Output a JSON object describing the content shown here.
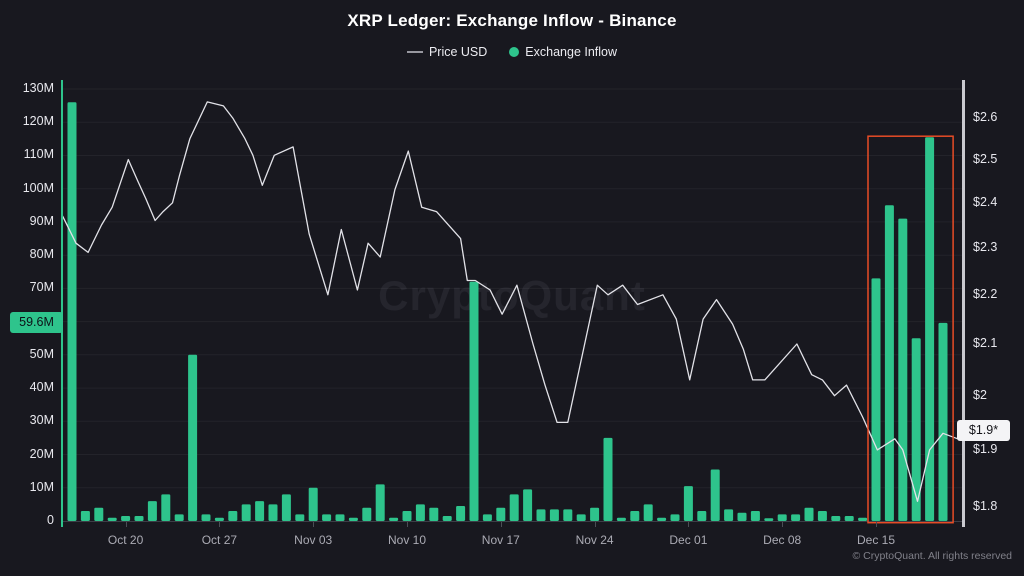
{
  "title": "XRP Ledger: Exchange Inflow - Binance",
  "legend": {
    "price_label": "Price USD",
    "inflow_label": "Exchange Inflow"
  },
  "watermark": "CryptoQuant",
  "footer": "© CryptoQuant. All rights reserved",
  "annotations": {
    "inflow_badge": {
      "label": "59.6M",
      "value": 59.6
    },
    "price_badge": {
      "label": "$1.9*",
      "value": 1.935
    }
  },
  "colors": {
    "green": "#2EC48C",
    "price_line": "#E2E2E8",
    "highlight_red": "#E74C26",
    "grid": "rgba(255,255,255,0.05)",
    "baseline": "rgba(170,175,190,0.25)"
  },
  "chart_data": {
    "type": "bar+line",
    "title": "XRP Ledger: Exchange Inflow - Binance",
    "legend_position": "top-center",
    "grid": "horizontal-faint",
    "y_left": {
      "unit": "XRP inflow (millions)",
      "range": [
        0,
        130
      ],
      "grid_values": [
        10,
        20,
        30,
        40,
        50,
        60,
        70,
        80,
        90,
        100,
        110,
        120,
        130
      ],
      "ticks": [
        {
          "value": 130,
          "label": "130M"
        },
        {
          "value": 120,
          "label": "120M"
        },
        {
          "value": 110,
          "label": "110M"
        },
        {
          "value": 100,
          "label": "100M"
        },
        {
          "value": 90,
          "label": "90M"
        },
        {
          "value": 80,
          "label": "80M"
        },
        {
          "value": 70,
          "label": "70M"
        },
        {
          "value": 50,
          "label": "50M"
        },
        {
          "value": 40,
          "label": "40M"
        },
        {
          "value": 30,
          "label": "30M"
        },
        {
          "value": 20,
          "label": "20M"
        },
        {
          "value": 10,
          "label": "10M"
        },
        {
          "value": 0,
          "label": "0"
        }
      ]
    },
    "y_right": {
      "unit": "Price USD",
      "scale": "log",
      "range": [
        1.78,
        2.66
      ],
      "ticks": [
        {
          "value": 2.6,
          "label": "$2.6"
        },
        {
          "value": 2.5,
          "label": "$2.5"
        },
        {
          "value": 2.4,
          "label": "$2.4"
        },
        {
          "value": 2.3,
          "label": "$2.3"
        },
        {
          "value": 2.2,
          "label": "$2.2"
        },
        {
          "value": 2.1,
          "label": "$2.1"
        },
        {
          "value": 2.0,
          "label": "$2"
        },
        {
          "value": 1.9,
          "label": "$1.9"
        },
        {
          "value": 1.8,
          "label": "$1.8"
        }
      ]
    },
    "x_axis": {
      "ticks": [
        {
          "day": 4,
          "label": "Oct 20"
        },
        {
          "day": 11,
          "label": "Oct 27"
        },
        {
          "day": 18,
          "label": "Nov 03"
        },
        {
          "day": 25,
          "label": "Nov 10"
        },
        {
          "day": 32,
          "label": "Nov 17"
        },
        {
          "day": 39,
          "label": "Nov 24"
        },
        {
          "day": 46,
          "label": "Dec 01"
        },
        {
          "day": 53,
          "label": "Dec 08"
        },
        {
          "day": 60,
          "label": "Dec 15"
        }
      ]
    },
    "series": {
      "inflow": {
        "name": "Exchange Inflow",
        "type": "bar",
        "unit": "M XRP",
        "dates": [
          "Oct 16",
          "Oct 17",
          "Oct 18",
          "Oct 19",
          "Oct 20",
          "Oct 21",
          "Oct 22",
          "Oct 23",
          "Oct 24",
          "Oct 25",
          "Oct 26",
          "Oct 27",
          "Oct 28",
          "Oct 29",
          "Oct 30",
          "Oct 31",
          "Nov 01",
          "Nov 02",
          "Nov 03",
          "Nov 04",
          "Nov 05",
          "Nov 06",
          "Nov 07",
          "Nov 08",
          "Nov 09",
          "Nov 10",
          "Nov 11",
          "Nov 12",
          "Nov 13",
          "Nov 14",
          "Nov 15",
          "Nov 16",
          "Nov 17",
          "Nov 18",
          "Nov 19",
          "Nov 20",
          "Nov 21",
          "Nov 22",
          "Nov 23",
          "Nov 24",
          "Nov 25",
          "Nov 26",
          "Nov 27",
          "Nov 28",
          "Nov 29",
          "Nov 30",
          "Dec 01",
          "Dec 02",
          "Dec 03",
          "Dec 04",
          "Dec 05",
          "Dec 06",
          "Dec 07",
          "Dec 08",
          "Dec 09",
          "Dec 10",
          "Dec 11",
          "Dec 12",
          "Dec 13",
          "Dec 14",
          "Dec 15",
          "Dec 16",
          "Dec 17",
          "Dec 18",
          "Dec 19",
          "Dec 20"
        ],
        "values": [
          126,
          3,
          4,
          1,
          1.5,
          1.5,
          6,
          8,
          2,
          50,
          2,
          1,
          3,
          5,
          6,
          5,
          8,
          2,
          10,
          2,
          2,
          1,
          4,
          11,
          1,
          3,
          5,
          4,
          1.5,
          4.5,
          72,
          2,
          4,
          8,
          9.5,
          3.5,
          3.5,
          3.5,
          2,
          4,
          25,
          1,
          3,
          5,
          1,
          2,
          10.5,
          3,
          15.5,
          3.5,
          2.5,
          3,
          0.8,
          2,
          2,
          4,
          3,
          1.5,
          1.5,
          1,
          73,
          95,
          91,
          55,
          115.5,
          59.6
        ]
      },
      "price": {
        "name": "Price USD",
        "type": "line",
        "unit": "USD",
        "points": [
          [
            -0.7,
            2.37
          ],
          [
            0.3,
            2.31
          ],
          [
            1.2,
            2.29
          ],
          [
            2.2,
            2.35
          ],
          [
            3.0,
            2.39
          ],
          [
            4.2,
            2.5
          ],
          [
            4.9,
            2.45
          ],
          [
            5.5,
            2.41
          ],
          [
            6.2,
            2.36
          ],
          [
            6.8,
            2.38
          ],
          [
            7.5,
            2.4
          ],
          [
            8.0,
            2.46
          ],
          [
            8.8,
            2.55
          ],
          [
            10.1,
            2.64
          ],
          [
            11.3,
            2.63
          ],
          [
            12.0,
            2.6
          ],
          [
            12.9,
            2.55
          ],
          [
            13.5,
            2.51
          ],
          [
            14.2,
            2.44
          ],
          [
            15.1,
            2.51
          ],
          [
            16.5,
            2.53
          ],
          [
            17.7,
            2.33
          ],
          [
            19.1,
            2.2
          ],
          [
            20.1,
            2.34
          ],
          [
            21.3,
            2.21
          ],
          [
            22.1,
            2.31
          ],
          [
            23.0,
            2.28
          ],
          [
            24.1,
            2.43
          ],
          [
            25.1,
            2.52
          ],
          [
            26.1,
            2.39
          ],
          [
            27.2,
            2.38
          ],
          [
            29.0,
            2.32
          ],
          [
            29.5,
            2.23
          ],
          [
            30.1,
            2.23
          ],
          [
            31.2,
            2.21
          ],
          [
            32.1,
            2.16
          ],
          [
            33.2,
            2.22
          ],
          [
            34.4,
            2.1
          ],
          [
            35.3,
            2.02
          ],
          [
            36.2,
            1.95
          ],
          [
            37.0,
            1.95
          ],
          [
            39.2,
            2.22
          ],
          [
            40.0,
            2.2
          ],
          [
            41.1,
            2.22
          ],
          [
            42.2,
            2.18
          ],
          [
            44.1,
            2.2
          ],
          [
            45.1,
            2.15
          ],
          [
            46.1,
            2.03
          ],
          [
            47.1,
            2.15
          ],
          [
            48.1,
            2.19
          ],
          [
            49.3,
            2.14
          ],
          [
            50.1,
            2.09
          ],
          [
            50.8,
            2.03
          ],
          [
            51.7,
            2.03
          ],
          [
            54.1,
            2.1
          ],
          [
            55.2,
            2.04
          ],
          [
            56.0,
            2.03
          ],
          [
            56.9,
            2.0
          ],
          [
            57.8,
            2.02
          ],
          [
            59.0,
            1.96
          ],
          [
            60.1,
            1.9
          ],
          [
            61.4,
            1.92
          ],
          [
            62.0,
            1.9
          ],
          [
            63.1,
            1.81
          ],
          [
            64.0,
            1.9
          ],
          [
            65.0,
            1.93
          ],
          [
            66.1,
            1.92
          ]
        ]
      }
    },
    "highlight_box": {
      "day_start": 59.4,
      "day_end": 65.75,
      "top_m": 115.8,
      "bottom_m": -0.5
    }
  }
}
